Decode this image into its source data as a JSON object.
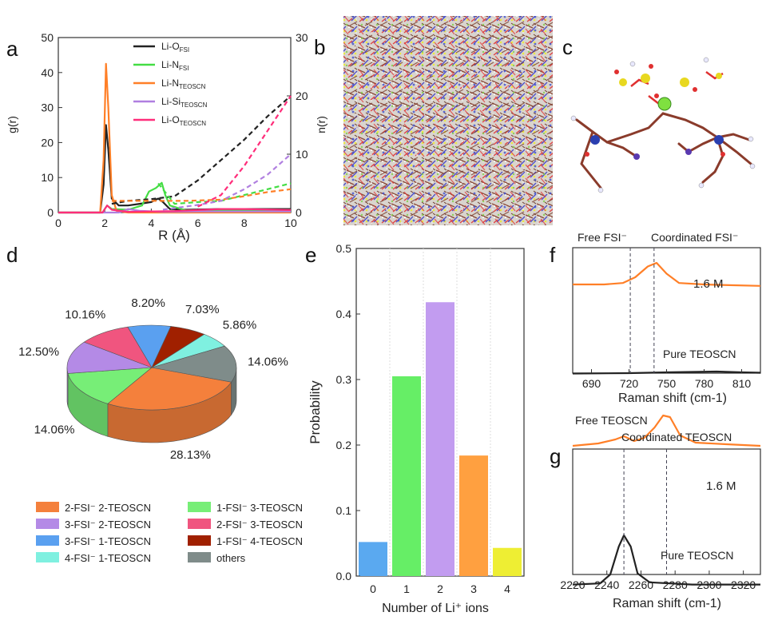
{
  "panel_letters": [
    "a",
    "b",
    "c",
    "d",
    "e",
    "f",
    "g"
  ],
  "panel_a": {
    "xlabel": "R (Å)",
    "ylabel_left": "g(r)",
    "ylabel_right": "n(r)"
  },
  "panel_f": {
    "xlabel": "Raman shift (cm-1)",
    "label_free": "Free FSI⁻",
    "label_coord": "Coordinated FSI⁻",
    "label_conc": "1.6 M",
    "label_pure": "Pure TEOSCN"
  },
  "panel_g": {
    "xlabel": "Raman shift (cm-1)",
    "label_free": "Free TEOSCN",
    "label_coord": "Coordinated TEOSCN",
    "label_conc": "1.6 M",
    "label_pure": "Pure TEOSCN"
  },
  "colors": {
    "black": "#222222",
    "green": "#44dd44",
    "orange": "#ff7f27",
    "purple": "#b07fe0",
    "pink": "#ff2d7a",
    "blue": "#5aa9f0",
    "yellow": "#eeee33",
    "cyan": "#7ff0e0",
    "darkred": "#a02000",
    "gray": "#7f8c8a",
    "orange_pie": "#f4803c",
    "purple_pie": "#b48ae6",
    "pink_pie": "#f0557f",
    "blue_pie": "#5aa0f0",
    "green_pie": "#77ee77"
  },
  "chart_data": [
    {
      "id": "a",
      "type": "line",
      "xlim": [
        0,
        10
      ],
      "ylim": [
        0,
        50
      ],
      "y2lim": [
        0,
        30
      ],
      "xticks": [
        0,
        2,
        4,
        6,
        8,
        10
      ],
      "yticks": [
        0,
        10,
        20,
        30,
        40,
        50
      ],
      "y2ticks": [
        0,
        10,
        20,
        30
      ],
      "series": [
        {
          "name": "Li-O",
          "sub": "FSI",
          "color": "#222222",
          "axis": "g",
          "points": [
            [
              0,
              0
            ],
            [
              1.8,
              0
            ],
            [
              1.95,
              8
            ],
            [
              2.05,
              25
            ],
            [
              2.15,
              18
            ],
            [
              2.3,
              4
            ],
            [
              2.6,
              2
            ],
            [
              3.0,
              2
            ],
            [
              3.5,
              2.5
            ],
            [
              4.0,
              3
            ],
            [
              4.3,
              4
            ],
            [
              4.5,
              3
            ],
            [
              4.8,
              1
            ],
            [
              5.5,
              0.8
            ],
            [
              7,
              1
            ],
            [
              10,
              1
            ]
          ]
        },
        {
          "name": "Li-N",
          "sub": "FSI",
          "color": "#44dd44",
          "axis": "g",
          "points": [
            [
              0,
              0
            ],
            [
              1.9,
              0
            ],
            [
              2.1,
              2
            ],
            [
              2.3,
              1
            ],
            [
              3.0,
              0.8
            ],
            [
              3.6,
              2
            ],
            [
              3.9,
              6
            ],
            [
              4.2,
              7
            ],
            [
              4.45,
              8.5
            ],
            [
              4.6,
              5
            ],
            [
              4.8,
              2
            ],
            [
              5.5,
              0.6
            ],
            [
              7,
              0.7
            ],
            [
              10,
              0.7
            ]
          ]
        },
        {
          "name": "Li-N",
          "sub": "TEOSCN",
          "color": "#ff7f27",
          "axis": "g",
          "points": [
            [
              0,
              0
            ],
            [
              1.8,
              0
            ],
            [
              1.95,
              15
            ],
            [
              2.05,
              42.5
            ],
            [
              2.15,
              30
            ],
            [
              2.3,
              5
            ],
            [
              2.5,
              0.5
            ],
            [
              3.0,
              0
            ],
            [
              10,
              0
            ]
          ]
        },
        {
          "name": "Li-Si",
          "sub": "TEOSCN",
          "color": "#b07fe0",
          "axis": "g",
          "points": [
            [
              0,
              0
            ],
            [
              2.6,
              0
            ],
            [
              3.0,
              1
            ],
            [
              3.5,
              0.5
            ],
            [
              4.5,
              0.2
            ],
            [
              6,
              0.3
            ],
            [
              8,
              0.3
            ],
            [
              10,
              0.3
            ]
          ]
        },
        {
          "name": "Li-O",
          "sub": "TEOSCN",
          "color": "#ff2d7a",
          "axis": "g",
          "points": [
            [
              0,
              0
            ],
            [
              1.9,
              0
            ],
            [
              2.1,
              2
            ],
            [
              2.3,
              0.8
            ],
            [
              3.0,
              0.2
            ],
            [
              5,
              0.4
            ],
            [
              7,
              1
            ],
            [
              8,
              1
            ],
            [
              10,
              0.7
            ]
          ]
        },
        {
          "name": "",
          "color": "#222222",
          "axis": "n",
          "dashed": true,
          "points": [
            [
              2.3,
              1.5
            ],
            [
              3,
              2
            ],
            [
              4,
              2.3
            ],
            [
              5,
              2.8
            ],
            [
              6,
              5.5
            ],
            [
              7,
              9
            ],
            [
              8,
              12.5
            ],
            [
              9,
              16.5
            ],
            [
              10,
              20
            ]
          ]
        },
        {
          "name": "",
          "color": "#44dd44",
          "axis": "n",
          "dashed": true,
          "points": [
            [
              4.3,
              5
            ],
            [
              5,
              1.5
            ],
            [
              6,
              1.8
            ],
            [
              7,
              2
            ],
            [
              8,
              3
            ],
            [
              9,
              4
            ],
            [
              10,
              5
            ]
          ]
        },
        {
          "name": "",
          "color": "#ff7f27",
          "axis": "n",
          "dashed": true,
          "points": [
            [
              2.3,
              2
            ],
            [
              4,
              2
            ],
            [
              5.5,
              2
            ],
            [
              7,
              2.2
            ],
            [
              8,
              2.8
            ],
            [
              9,
              3.5
            ],
            [
              10,
              4
            ]
          ]
        },
        {
          "name": "",
          "color": "#b07fe0",
          "axis": "n",
          "dashed": true,
          "points": [
            [
              4.5,
              0.5
            ],
            [
              6,
              1.3
            ],
            [
              7,
              2
            ],
            [
              8,
              4
            ],
            [
              9,
              6.5
            ],
            [
              10,
              10
            ]
          ]
        },
        {
          "name": "",
          "color": "#ff2d7a",
          "axis": "n",
          "dashed": true,
          "points": [
            [
              6,
              1
            ],
            [
              7,
              3
            ],
            [
              8,
              8
            ],
            [
              9,
              14
            ],
            [
              10,
              20
            ]
          ]
        }
      ]
    },
    {
      "id": "d",
      "type": "pie",
      "slices": [
        {
          "label": "2-FSI⁻ 2-TEOSCN",
          "value": 28.13,
          "text": "28.13%",
          "color": "#f4803c"
        },
        {
          "label": "1-FSI⁻ 3-TEOSCN",
          "value": 14.06,
          "text": "14.06%",
          "color": "#77ee77"
        },
        {
          "label": "3-FSI⁻ 2-TEOSCN",
          "value": 12.5,
          "text": "12.50%",
          "color": "#b48ae6"
        },
        {
          "label": "2-FSI⁻ 3-TEOSCN",
          "value": 10.16,
          "text": "10.16%",
          "color": "#f0557f"
        },
        {
          "label": "3-FSI⁻ 1-TEOSCN",
          "value": 8.2,
          "text": "8.20%",
          "color": "#5aa0f0"
        },
        {
          "label": "1-FSI⁻ 4-TEOSCN",
          "value": 7.03,
          "text": "7.03%",
          "color": "#a02000"
        },
        {
          "label": "4-FSI⁻ 1-TEOSCN",
          "value": 5.86,
          "text": "5.86%",
          "color": "#7ff0e0"
        },
        {
          "label": "others",
          "value": 14.06,
          "text": "14.06%",
          "color": "#7f8c8a"
        }
      ]
    },
    {
      "id": "e",
      "type": "bar",
      "categories": [
        "0",
        "1",
        "2",
        "3",
        "4"
      ],
      "values": [
        0.052,
        0.305,
        0.418,
        0.184,
        0.043
      ],
      "colors": [
        "#5aa9f0",
        "#66ee66",
        "#c29cf0",
        "#ffa040",
        "#eeee33"
      ],
      "ylim": [
        0,
        0.5
      ],
      "yticks": [
        0.0,
        0.1,
        0.2,
        0.3,
        0.4,
        0.5
      ],
      "ylabel": "Probability",
      "xlabel": "Number of Li⁺ ions"
    },
    {
      "id": "f",
      "type": "line",
      "xlim": [
        675,
        825
      ],
      "xticks": [
        690,
        720,
        750,
        780,
        810
      ],
      "marks": [
        721,
        740
      ],
      "series": [
        {
          "name": "1.6 M",
          "color": "#ff7f27",
          "points": [
            [
              675,
              0.6
            ],
            [
              700,
              0.6
            ],
            [
              715,
              0.62
            ],
            [
              725,
              0.7
            ],
            [
              735,
              0.85
            ],
            [
              742,
              0.9
            ],
            [
              750,
              0.75
            ],
            [
              760,
              0.62
            ],
            [
              780,
              0.6
            ],
            [
              800,
              0.59
            ],
            [
              825,
              0.58
            ]
          ]
        },
        {
          "name": "Pure TEOSCN",
          "color": "#222222",
          "points": [
            [
              675,
              0.05
            ],
            [
              720,
              0.06
            ],
            [
              750,
              0.08
            ],
            [
              790,
              0.1
            ],
            [
              810,
              0.08
            ],
            [
              825,
              0.07
            ]
          ]
        }
      ]
    },
    {
      "id": "g",
      "type": "line",
      "xlim": [
        2220,
        2330
      ],
      "xticks": [
        2220,
        2240,
        2260,
        2280,
        2300,
        2320
      ],
      "marks": [
        2250,
        2275
      ],
      "series": [
        {
          "name": "1.6 M",
          "color": "#ff7f27",
          "points": [
            [
              2220,
              0.62
            ],
            [
              2235,
              0.65
            ],
            [
              2245,
              0.7
            ],
            [
              2250,
              0.74
            ],
            [
              2256,
              0.68
            ],
            [
              2262,
              0.72
            ],
            [
              2268,
              0.85
            ],
            [
              2273,
              1.0
            ],
            [
              2277,
              0.98
            ],
            [
              2283,
              0.75
            ],
            [
              2292,
              0.66
            ],
            [
              2310,
              0.64
            ],
            [
              2330,
              0.62
            ]
          ]
        },
        {
          "name": "Pure TEOSCN",
          "color": "#222222",
          "points": [
            [
              2220,
              0.06
            ],
            [
              2236,
              0.07
            ],
            [
              2242,
              0.15
            ],
            [
              2247,
              0.4
            ],
            [
              2250,
              0.5
            ],
            [
              2254,
              0.4
            ],
            [
              2258,
              0.16
            ],
            [
              2265,
              0.08
            ],
            [
              2290,
              0.06
            ],
            [
              2330,
              0.06
            ]
          ]
        }
      ]
    }
  ]
}
